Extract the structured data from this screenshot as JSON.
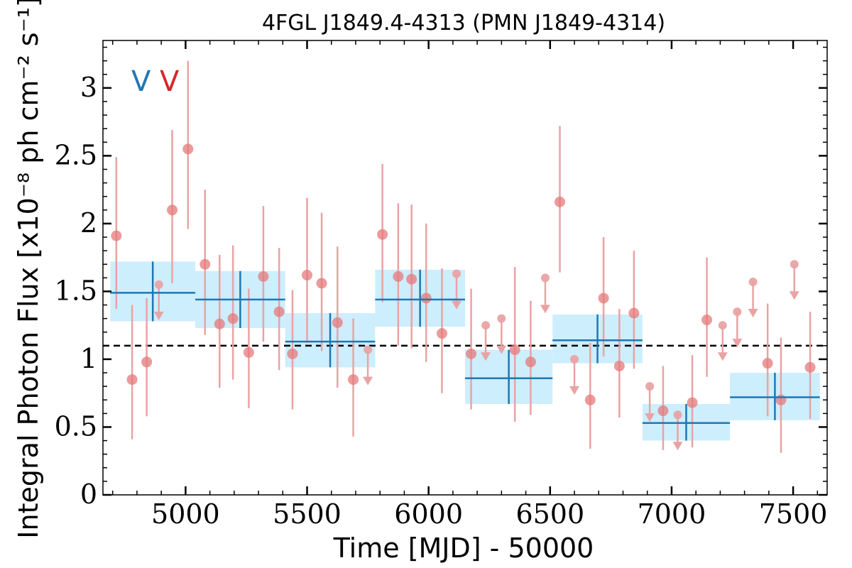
{
  "chart_data": {
    "type": "scatter",
    "title": "4FGL J1849.4-4313 (PMN J1849-4314)",
    "xlabel": "Time [MJD] - 50000",
    "ylabel": "Integral Photon Flux [x10⁻⁸ ph cm⁻² s⁻¹]",
    "xlim": [
      4660,
      7640
    ],
    "ylim": [
      0,
      3.35
    ],
    "x_ticks": [
      5000,
      5500,
      6000,
      6500,
      7000,
      7500
    ],
    "y_ticks": [
      0,
      0.5,
      1,
      1.5,
      2,
      2.5,
      3
    ],
    "y_tick_labels": [
      "0",
      "0.5",
      "1",
      "1.5",
      "2",
      "2.5",
      "3"
    ],
    "reference_line": {
      "y": 1.1,
      "style": "dashed",
      "color": "#000000"
    },
    "legend": [
      {
        "label": "V",
        "color": "#1f77b4"
      },
      {
        "label": "V",
        "color": "#d62728"
      }
    ],
    "series": [
      {
        "label": "V",
        "kind": "binned",
        "color": "#1f77b4",
        "band_color": "#cdeefd",
        "bins": [
          {
            "x0": 4690,
            "x1": 5040,
            "xc": 4865,
            "y": 1.49,
            "ylo": 1.28,
            "yhi": 1.72
          },
          {
            "x0": 5040,
            "x1": 5410,
            "xc": 5225,
            "y": 1.44,
            "ylo": 1.23,
            "yhi": 1.65
          },
          {
            "x0": 5410,
            "x1": 5780,
            "xc": 5595,
            "y": 1.13,
            "ylo": 0.94,
            "yhi": 1.34
          },
          {
            "x0": 5780,
            "x1": 6150,
            "xc": 5965,
            "y": 1.44,
            "ylo": 1.24,
            "yhi": 1.66
          },
          {
            "x0": 6150,
            "x1": 6510,
            "xc": 6330,
            "y": 0.86,
            "ylo": 0.67,
            "yhi": 1.07
          },
          {
            "x0": 6510,
            "x1": 6880,
            "xc": 6695,
            "y": 1.14,
            "ylo": 0.97,
            "yhi": 1.33
          },
          {
            "x0": 6880,
            "x1": 7240,
            "xc": 7060,
            "y": 0.53,
            "ylo": 0.4,
            "yhi": 0.67
          },
          {
            "x0": 7240,
            "x1": 7610,
            "xc": 7425,
            "y": 0.72,
            "ylo": 0.55,
            "yhi": 0.9
          }
        ]
      },
      {
        "label": "V",
        "kind": "points",
        "color": "#e6787a",
        "errbar_color": "#e9a3a4",
        "points": [
          {
            "x": 4715,
            "y": 1.91,
            "ylo": 1.37,
            "yhi": 2.49
          },
          {
            "x": 4780,
            "y": 0.85,
            "ylo": 0.41,
            "yhi": 1.4
          },
          {
            "x": 4840,
            "y": 0.98,
            "ylo": 0.58,
            "yhi": 1.45
          },
          {
            "x": 4890,
            "y": 1.55,
            "upper_limit": true
          },
          {
            "x": 4945,
            "y": 2.1,
            "ylo": 1.56,
            "yhi": 2.69
          },
          {
            "x": 5010,
            "y": 2.55,
            "ylo": 1.96,
            "yhi": 3.2
          },
          {
            "x": 5080,
            "y": 1.7,
            "ylo": 1.18,
            "yhi": 2.25
          },
          {
            "x": 5140,
            "y": 1.26,
            "ylo": 0.79,
            "yhi": 1.77
          },
          {
            "x": 5195,
            "y": 1.3,
            "ylo": 0.85,
            "yhi": 1.84
          },
          {
            "x": 5260,
            "y": 1.05,
            "ylo": 0.64,
            "yhi": 1.52
          },
          {
            "x": 5320,
            "y": 1.61,
            "ylo": 1.13,
            "yhi": 2.13
          },
          {
            "x": 5385,
            "y": 1.35,
            "ylo": 0.92,
            "yhi": 1.82
          },
          {
            "x": 5440,
            "y": 1.04,
            "ylo": 0.63,
            "yhi": 1.51
          },
          {
            "x": 5500,
            "y": 1.62,
            "ylo": 1.12,
            "yhi": 2.19
          },
          {
            "x": 5560,
            "y": 1.56,
            "ylo": 1.06,
            "yhi": 2.08
          },
          {
            "x": 5625,
            "y": 1.27,
            "ylo": 0.79,
            "yhi": 1.83
          },
          {
            "x": 5690,
            "y": 0.85,
            "ylo": 0.43,
            "yhi": 1.3
          },
          {
            "x": 5750,
            "y": 1.07,
            "upper_limit": true
          },
          {
            "x": 5810,
            "y": 1.92,
            "ylo": 1.42,
            "yhi": 2.44
          },
          {
            "x": 5875,
            "y": 1.61,
            "ylo": 1.1,
            "yhi": 2.15
          },
          {
            "x": 5930,
            "y": 1.59,
            "ylo": 1.08,
            "yhi": 2.14
          },
          {
            "x": 5990,
            "y": 1.45,
            "ylo": 0.98,
            "yhi": 2.0
          },
          {
            "x": 6055,
            "y": 1.19,
            "ylo": 0.75,
            "yhi": 1.67
          },
          {
            "x": 6115,
            "y": 1.63,
            "upper_limit": true
          },
          {
            "x": 6175,
            "y": 1.04,
            "ylo": 0.63,
            "yhi": 1.52
          },
          {
            "x": 6235,
            "y": 1.25,
            "upper_limit": true
          },
          {
            "x": 6300,
            "y": 1.3,
            "upper_limit": true
          },
          {
            "x": 6355,
            "y": 1.07,
            "ylo": 0.54,
            "yhi": 1.68
          },
          {
            "x": 6420,
            "y": 0.98,
            "ylo": 0.59,
            "yhi": 1.43
          },
          {
            "x": 6480,
            "y": 1.6,
            "upper_limit": true
          },
          {
            "x": 6540,
            "y": 2.16,
            "ylo": 1.64,
            "yhi": 2.72
          },
          {
            "x": 6600,
            "y": 1.0,
            "upper_limit": true
          },
          {
            "x": 6665,
            "y": 0.7,
            "ylo": 0.34,
            "yhi": 1.12
          },
          {
            "x": 6720,
            "y": 1.45,
            "ylo": 1.02,
            "yhi": 1.9
          },
          {
            "x": 6785,
            "y": 0.95,
            "ylo": 0.57,
            "yhi": 1.37
          },
          {
            "x": 6845,
            "y": 1.34,
            "ylo": 0.93,
            "yhi": 1.8
          },
          {
            "x": 6910,
            "y": 0.8,
            "upper_limit": true
          },
          {
            "x": 6965,
            "y": 0.62,
            "ylo": 0.33,
            "yhi": 0.95
          },
          {
            "x": 7025,
            "y": 0.59,
            "upper_limit": true
          },
          {
            "x": 7085,
            "y": 0.68,
            "ylo": 0.35,
            "yhi": 1.03
          },
          {
            "x": 7145,
            "y": 1.29,
            "ylo": 0.87,
            "yhi": 1.75
          },
          {
            "x": 7210,
            "y": 1.25,
            "upper_limit": true
          },
          {
            "x": 7270,
            "y": 1.35,
            "upper_limit": true
          },
          {
            "x": 7335,
            "y": 1.57,
            "upper_limit": true
          },
          {
            "x": 7395,
            "y": 0.97,
            "ylo": 0.58,
            "yhi": 1.41
          },
          {
            "x": 7450,
            "y": 0.7,
            "ylo": 0.31,
            "yhi": 1.16
          },
          {
            "x": 7505,
            "y": 1.7,
            "upper_limit": true
          },
          {
            "x": 7570,
            "y": 0.94,
            "ylo": 0.56,
            "yhi": 1.35
          }
        ]
      }
    ]
  }
}
